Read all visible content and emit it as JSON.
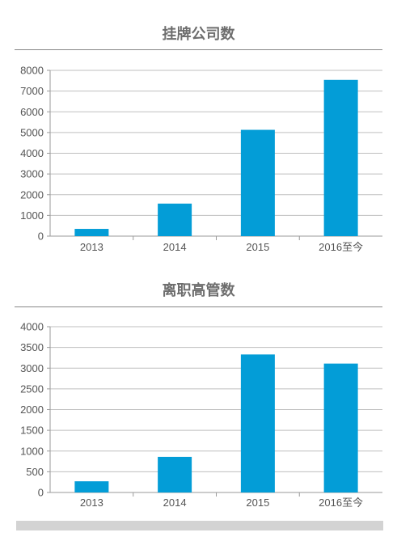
{
  "colors": {
    "bar": "#039dd7",
    "grid": "#bfbfbf",
    "axis": "#9a9a9a"
  },
  "chart_data": [
    {
      "type": "bar",
      "title": "挂牌公司数",
      "categories": [
        "2013",
        "2014",
        "2015",
        "2016至今"
      ],
      "values": [
        350,
        1570,
        5130,
        7540
      ],
      "ylim": [
        0,
        8000
      ],
      "yticks": [
        0,
        1000,
        2000,
        3000,
        4000,
        5000,
        6000,
        7000,
        8000
      ],
      "grid": true
    },
    {
      "type": "bar",
      "title": "离职高管数",
      "categories": [
        "2013",
        "2014",
        "2015",
        "2016至今"
      ],
      "values": [
        270,
        860,
        3330,
        3110
      ],
      "ylim": [
        0,
        4000
      ],
      "yticks": [
        0,
        500,
        1000,
        1500,
        2000,
        2500,
        3000,
        3500,
        4000
      ],
      "grid": true
    }
  ]
}
